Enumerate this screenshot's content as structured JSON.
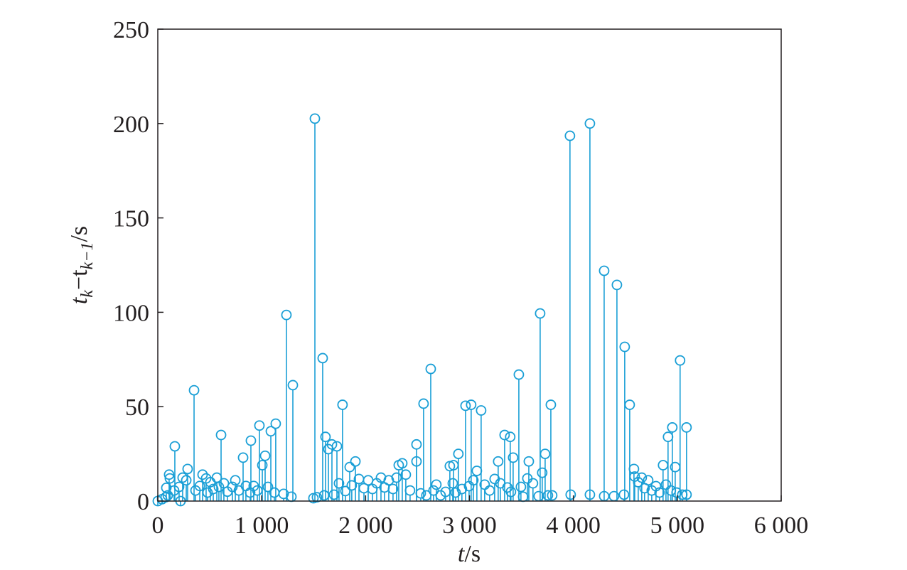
{
  "chart_data": {
    "type": "stem",
    "xlabel": [
      "t",
      "/s"
    ],
    "ylabel": [
      "t",
      "k",
      "−t",
      "k−1",
      "/s"
    ],
    "xlim": [
      0,
      6000
    ],
    "xticks": [
      0,
      {
        "value": 1000,
        "label": "1 000"
      },
      {
        "value": 2000,
        "label": "2 000"
      },
      {
        "value": 3000,
        "label": "3 000"
      },
      {
        "value": 4000,
        "label": "4 000"
      },
      {
        "value": 5000,
        "label": "5 000"
      },
      {
        "value": 6000,
        "label": "6 000"
      }
    ],
    "ylim": [
      0,
      250
    ],
    "yticks": [
      0,
      50,
      100,
      150,
      200,
      250
    ],
    "color": "#1a9fd6",
    "x": [
      1512,
      1238,
      1300,
      349,
      164,
      609,
      821,
      896,
      978,
      1088,
      1135,
      1033,
      1006,
      1587,
      1614,
      1642,
      1676,
      1724,
      1778,
      1902,
      1847,
      2490,
      2490,
      2558,
      2627,
      2353,
      2319,
      2962,
      3016,
      3112,
      2893,
      2811,
      2846,
      3071,
      3276,
      3338,
      3392,
      3420,
      3475,
      3571,
      3557,
      3680,
      3700,
      3728,
      3783,
      3967,
      4159,
      4296,
      4419,
      4494,
      4542,
      4583,
      4911,
      4952,
      4980,
      4863,
      5027,
      5089,
      5048,
      5089,
      3974,
      4159,
      4296,
      4391,
      4487,
      0,
      41,
      75,
      96,
      109,
      116,
      82,
      157,
      205,
      219,
      239,
      287,
      274,
      363,
      404,
      431,
      465,
      479,
      506,
      534,
      568,
      588,
      636,
      670,
      718,
      746,
      780,
      848,
      889,
      923,
      958,
      1060,
      1122,
      1211,
      1286,
      1498,
      1532,
      1601,
      1696,
      1744,
      1806,
      1867,
      1936,
      1984,
      2025,
      2066,
      2107,
      2148,
      2182,
      2223,
      2264,
      2298,
      2387,
      2428,
      2531,
      2585,
      2654,
      2681,
      2722,
      2770,
      2839,
      2866,
      2927,
      2996,
      3037,
      3146,
      3194,
      3242,
      3297,
      3365,
      3399,
      3495,
      3516,
      3611,
      3666,
      3755,
      3796,
      4590,
      4624,
      4658,
      4685,
      4720,
      4754,
      4795,
      4829,
      4891,
      4938,
      4993
    ],
    "values": [
      202.6,
      98.6,
      61.4,
      58.7,
      29,
      35,
      23,
      32,
      40,
      37,
      41,
      24,
      19,
      75.7,
      34,
      27.5,
      30,
      29,
      51,
      21,
      18,
      30,
      21,
      51.6,
      70,
      20,
      19,
      50.5,
      51,
      48,
      25,
      18.5,
      19,
      16,
      21,
      35,
      34,
      23,
      67,
      21,
      12,
      99.4,
      15,
      25,
      51,
      193.5,
      200,
      122,
      114.5,
      81.7,
      51,
      17,
      34,
      39,
      18,
      19,
      74.5,
      39,
      3.4,
      3.4,
      3.4,
      3.4,
      2.6,
      2.6,
      3.4,
      0,
      1,
      2,
      3,
      14,
      12,
      7,
      5.6,
      7.5,
      0,
      12.4,
      17,
      11,
      5.6,
      8,
      14,
      12,
      4.5,
      10,
      6.4,
      12.4,
      7.5,
      9.4,
      5,
      7.5,
      11,
      5.6,
      8,
      4.5,
      8,
      5.6,
      7.5,
      4.5,
      3.8,
      2.3,
      1.5,
      2,
      3,
      3.4,
      9.4,
      5.3,
      8.3,
      11.7,
      6.8,
      11,
      6.4,
      9.4,
      12.4,
      7.2,
      11,
      6.4,
      12.4,
      14,
      5.6,
      4.1,
      3,
      5.6,
      8.7,
      3,
      4.9,
      9.4,
      4.5,
      6.4,
      7.9,
      11,
      8.7,
      5.6,
      11.7,
      9.4,
      7.2,
      4.9,
      7.5,
      2.3,
      9.4,
      2.6,
      3,
      3,
      13,
      10,
      12.4,
      6.8,
      11,
      5.6,
      7.9,
      4.5,
      8.7,
      5.6,
      4.5
    ]
  }
}
